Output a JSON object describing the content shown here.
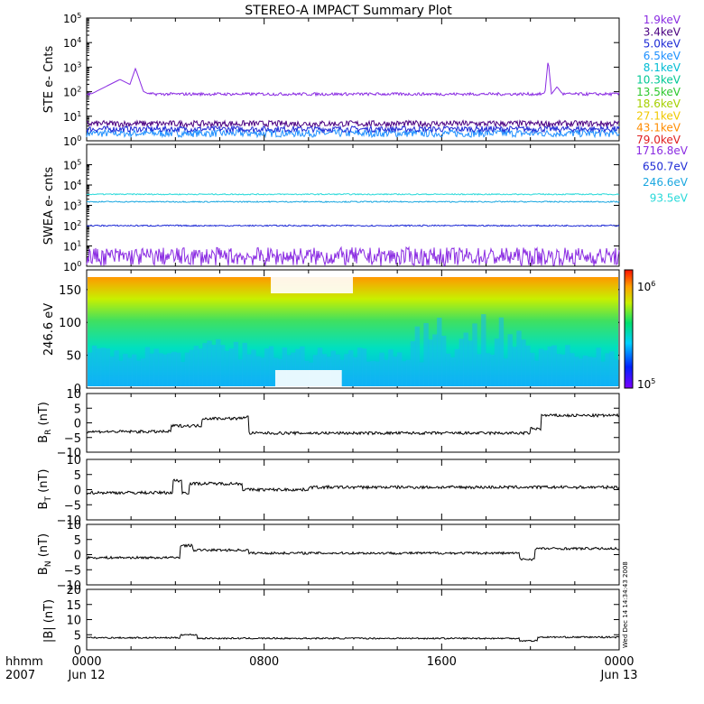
{
  "title": "STEREO-A IMPACT Summary Plot",
  "colors": {
    "axis": "#000000",
    "trace": "#000000",
    "ste_top": "#7f00ff",
    "swea_top": "#8a2be2",
    "swea_mid": "#1e2bd6",
    "swea_low1": "#1aa7e0",
    "swea_low2": "#28d9d9"
  },
  "ste_legend": [
    {
      "label": "1.9keV",
      "color": "#8a2be2"
    },
    {
      "label": "3.4keV",
      "color": "#4b0082"
    },
    {
      "label": "5.0keV",
      "color": "#1e2bd6"
    },
    {
      "label": "6.5keV",
      "color": "#1e90ff"
    },
    {
      "label": "8.1keV",
      "color": "#00bcd4"
    },
    {
      "label": "10.3keV",
      "color": "#00c896"
    },
    {
      "label": "13.5keV",
      "color": "#2ec82e"
    },
    {
      "label": "18.6keV",
      "color": "#a6d000"
    },
    {
      "label": "27.1keV",
      "color": "#f0c800"
    },
    {
      "label": "43.1keV",
      "color": "#ff8c00"
    },
    {
      "label": "79.0keV",
      "color": "#e02020"
    }
  ],
  "swea_legend": [
    {
      "label": "1716.8eV",
      "color": "#8a2be2"
    },
    {
      "label": "650.7eV",
      "color": "#1e2bd6"
    },
    {
      "label": "246.6eV",
      "color": "#1aa7e0"
    },
    {
      "label": "93.5eV",
      "color": "#28d9d9"
    }
  ],
  "panels": {
    "ste": {
      "ylabel": "STE e- Cnts",
      "exp_ticks": [
        "0",
        "1",
        "2",
        "3",
        "4",
        "5"
      ]
    },
    "swea": {
      "ylabel": "SWEA e- cnts",
      "exp_ticks": [
        "0",
        "1",
        "2",
        "3",
        "4",
        "5"
      ]
    },
    "pad": {
      "ylabel": "246.6 eV",
      "ticks": [
        "0",
        "50",
        "100",
        "150"
      ],
      "cbar_top_exp": "6",
      "cbar_bottom_exp": "5"
    },
    "br": {
      "ylabel_main": "B",
      "ylabel_sub": "R",
      "ylabel_unit": " (nT)",
      "ticks": [
        "−10",
        "−5",
        "0",
        "5",
        "10"
      ]
    },
    "bt": {
      "ylabel_main": "B",
      "ylabel_sub": "T",
      "ylabel_unit": " (nT)",
      "ticks": [
        "−10",
        "−5",
        "0",
        "5",
        "10"
      ]
    },
    "bn": {
      "ylabel_main": "B",
      "ylabel_sub": "N",
      "ylabel_unit": " (nT)",
      "ticks": [
        "−10",
        "−5",
        "0",
        "5",
        "10"
      ]
    },
    "bmag": {
      "ylabel": "|B| (nT)",
      "ticks": [
        "0",
        "5",
        "10",
        "15",
        "20"
      ]
    }
  },
  "x_axis": {
    "ticks": [
      "0000",
      "0800",
      "1600",
      "0000"
    ],
    "dates": [
      "Jun 12",
      "",
      "",
      "Jun 13"
    ],
    "corner_top": "hhmm",
    "corner_bottom": "2007"
  },
  "side_stamp": "Wed Dec 14 14:34:43 2008",
  "chart_data": {
    "type": "line",
    "time_range": [
      "2007-06-12 00:00",
      "2007-06-13 00:00"
    ],
    "ste": {
      "yscale": "log",
      "ylim": [
        1,
        100000
      ],
      "series": [
        {
          "name": "1.9keV",
          "level": 80,
          "note_peaks_hours": [
            2.6,
            20.8
          ]
        },
        {
          "name": "3.4keV",
          "level": 5
        },
        {
          "name": "5.0keV",
          "level": 3
        },
        {
          "name": "6.5keV",
          "level": 2
        }
      ]
    },
    "swea": {
      "yscale": "log",
      "ylim": [
        1,
        1000000
      ],
      "series": [
        {
          "name": "1716.8eV",
          "level": 3
        },
        {
          "name": "650.7eV",
          "level": 100
        },
        {
          "name": "246.6eV",
          "level": 1500
        },
        {
          "name": "93.5eV",
          "level": 3500
        }
      ]
    },
    "pad": {
      "ylim": [
        0,
        180
      ],
      "colorbar_range": [
        100000,
        1000000
      ]
    },
    "br": {
      "ylim": [
        -10,
        10
      ],
      "segments": [
        {
          "hours": [
            0,
            3.8
          ],
          "value": -3
        },
        {
          "hours": [
            3.8,
            5.2
          ],
          "value": -1
        },
        {
          "hours": [
            5.2,
            7
          ],
          "value": 1.5
        },
        {
          "hours": [
            7,
            7.3
          ],
          "value": 2
        },
        {
          "hours": [
            7.3,
            20
          ],
          "value": -3.5
        },
        {
          "hours": [
            20,
            20.5
          ],
          "value": -2
        },
        {
          "hours": [
            20.5,
            24
          ],
          "value": 2.5
        }
      ]
    },
    "bt": {
      "ylim": [
        -10,
        10
      ],
      "segments": [
        {
          "hours": [
            0,
            3.9
          ],
          "value": -1
        },
        {
          "hours": [
            3.9,
            4.3
          ],
          "value": 3
        },
        {
          "hours": [
            4.3,
            4.6
          ],
          "value": -1
        },
        {
          "hours": [
            4.6,
            7
          ],
          "value": 2
        },
        {
          "hours": [
            7,
            10
          ],
          "value": 0
        },
        {
          "hours": [
            10,
            24
          ],
          "value": 0.8
        }
      ]
    },
    "bn": {
      "ylim": [
        -10,
        10
      ],
      "segments": [
        {
          "hours": [
            0,
            4.2
          ],
          "value": -1
        },
        {
          "hours": [
            4.2,
            4.8
          ],
          "value": 3
        },
        {
          "hours": [
            4.8,
            7.3
          ],
          "value": 1.5
        },
        {
          "hours": [
            7.3,
            19.5
          ],
          "value": 0.5
        },
        {
          "hours": [
            19.5,
            20.2
          ],
          "value": -1.5
        },
        {
          "hours": [
            20.2,
            24
          ],
          "value": 2
        }
      ]
    },
    "bmag": {
      "ylim": [
        0,
        20
      ],
      "segments": [
        {
          "hours": [
            0,
            4.2
          ],
          "value": 4
        },
        {
          "hours": [
            4.2,
            5
          ],
          "value": 5
        },
        {
          "hours": [
            5,
            19.5
          ],
          "value": 3.8
        },
        {
          "hours": [
            19.5,
            20.3
          ],
          "value": 3
        },
        {
          "hours": [
            20.3,
            24
          ],
          "value": 4.2
        }
      ]
    }
  }
}
